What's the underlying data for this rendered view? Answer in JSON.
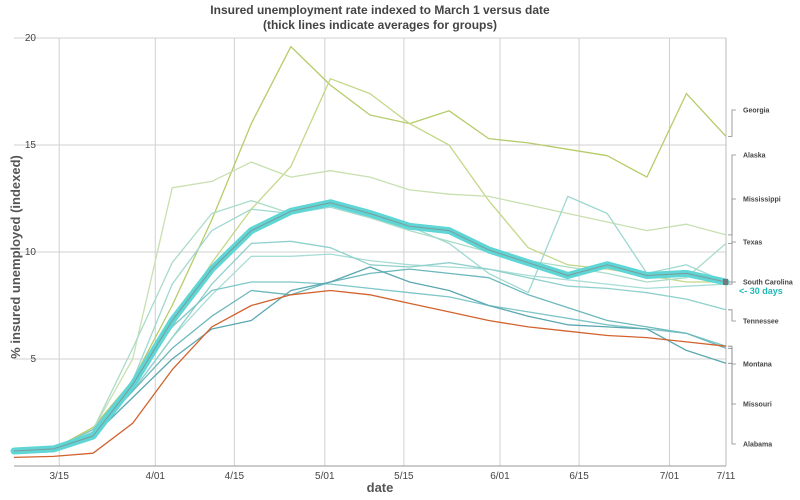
{
  "chart_data": {
    "type": "line",
    "title": "Insured unemployment rate indexed to March 1 versus date",
    "subtitle": "(thick lines indicate averages for groups)",
    "xlabel": "date",
    "ylabel": "% insured unemployed (indexed)",
    "x": [
      "3/07",
      "3/14",
      "3/21",
      "3/28",
      "4/04",
      "4/11",
      "4/18",
      "4/25",
      "5/02",
      "5/09",
      "5/16",
      "5/23",
      "5/30",
      "6/06",
      "6/13",
      "6/20",
      "6/27",
      "7/04",
      "7/11"
    ],
    "x_ticks": [
      "3/15",
      "4/01",
      "4/15",
      "5/01",
      "5/15",
      "6/01",
      "6/15",
      "7/01",
      "7/11"
    ],
    "y_ticks": [
      5,
      10,
      15,
      20
    ],
    "ylim": [
      0,
      20
    ],
    "grid": true,
    "series": [
      {
        "name": "Georgia",
        "color": "#b5cc6a",
        "values": [
          0.7,
          0.8,
          1.8,
          4.0,
          7.5,
          11.5,
          16.0,
          19.6,
          17.8,
          16.4,
          16.0,
          16.6,
          15.3,
          15.1,
          14.8,
          14.5,
          13.5,
          17.4,
          15.4
        ]
      },
      {
        "name": null,
        "color": "#c3d888",
        "values": [
          0.7,
          0.7,
          1.5,
          3.8,
          6.5,
          9.5,
          12.0,
          14.0,
          18.1,
          17.4,
          16.0,
          15.0,
          12.4,
          10.2,
          9.4,
          9.2,
          8.9,
          8.6,
          8.6
        ]
      },
      {
        "name": "Alaska",
        "color": "#c8e0b0",
        "values": [
          0.7,
          0.8,
          1.7,
          5.0,
          13.0,
          13.3,
          14.2,
          13.5,
          13.8,
          13.5,
          12.9,
          12.7,
          12.6,
          12.2,
          11.8,
          11.4,
          11.0,
          11.3,
          10.8
        ]
      },
      {
        "name": "Mississippi",
        "color": "#aadcc8",
        "values": [
          0.7,
          0.8,
          1.7,
          5.5,
          9.5,
          11.8,
          12.4,
          11.8,
          12.2,
          11.6,
          11.0,
          10.5,
          10.0,
          9.6,
          9.3,
          9.0,
          8.6,
          8.8,
          10.4
        ]
      },
      {
        "name": "Texas",
        "color": "#9fd8d0",
        "values": [
          0.7,
          0.8,
          1.5,
          4.0,
          8.5,
          11.0,
          12.0,
          11.8,
          12.1,
          11.6,
          11.2,
          10.4,
          9.0,
          8.1,
          12.6,
          11.8,
          9.0,
          9.4,
          8.6
        ]
      },
      {
        "name": "South Carolina",
        "color": "#a8dcd6",
        "values": [
          0.7,
          0.8,
          1.6,
          3.5,
          6.0,
          8.0,
          9.8,
          9.8,
          9.9,
          9.6,
          9.4,
          9.3,
          9.2,
          8.9,
          8.7,
          8.5,
          8.3,
          8.4,
          8.5
        ]
      },
      {
        "name": "Tennessee",
        "color": "#8fd0cc",
        "values": [
          0.7,
          0.8,
          1.6,
          3.5,
          6.0,
          8.5,
          10.4,
          10.5,
          10.2,
          9.4,
          9.3,
          9.5,
          9.2,
          8.8,
          8.4,
          8.3,
          8.1,
          7.8,
          7.3
        ]
      },
      {
        "name": "Montana",
        "color": "#7ec6c8",
        "values": [
          0.7,
          0.8,
          1.7,
          4.0,
          6.5,
          8.2,
          8.6,
          8.6,
          8.5,
          8.3,
          8.1,
          7.9,
          7.5,
          7.2,
          6.9,
          6.6,
          6.4,
          6.2,
          5.6
        ]
      },
      {
        "name": "Missouri",
        "color": "#6cb8bc",
        "values": [
          0.7,
          0.8,
          1.5,
          3.5,
          5.5,
          7.0,
          8.2,
          8.0,
          8.6,
          9.0,
          9.2,
          9.0,
          8.8,
          8.0,
          7.4,
          6.8,
          6.5,
          6.2,
          5.5
        ]
      },
      {
        "name": "Alabama",
        "color": "#5aa8b0",
        "values": [
          0.7,
          0.8,
          1.4,
          3.2,
          5.0,
          6.4,
          6.8,
          8.2,
          8.6,
          9.3,
          8.6,
          8.2,
          7.5,
          7.0,
          6.6,
          6.5,
          6.4,
          5.4,
          4.8
        ]
      },
      {
        "name": null,
        "color": "#d2632f",
        "values": [
          0.4,
          0.45,
          0.6,
          2.0,
          4.5,
          6.5,
          7.5,
          8.0,
          8.2,
          8.0,
          7.6,
          7.2,
          6.8,
          6.5,
          6.3,
          6.1,
          6.0,
          5.8,
          5.6
        ]
      }
    ],
    "average": {
      "name": null,
      "color": "#5fd6d6",
      "values": [
        0.7,
        0.8,
        1.4,
        3.8,
        6.8,
        9.2,
        11.0,
        11.9,
        12.3,
        11.8,
        11.2,
        11.0,
        10.1,
        9.5,
        8.9,
        9.4,
        8.9,
        9.0,
        8.6
      ]
    },
    "annotation": "<- 30 days",
    "annotation_color": "#22b8b8"
  }
}
